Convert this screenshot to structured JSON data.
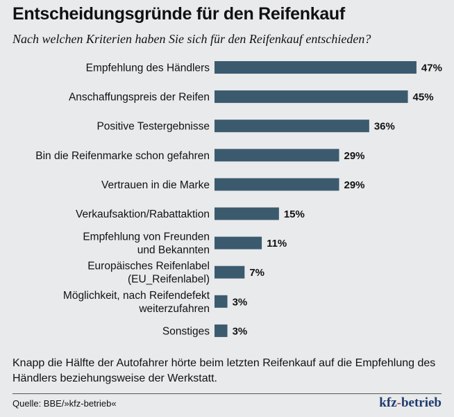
{
  "chart_data": {
    "type": "bar",
    "orientation": "horizontal",
    "title": "Entscheidungsgründe für den Reifenkauf",
    "subtitle": "Nach welchen Kriterien haben Sie sich für den Reifenkauf entschieden?",
    "categories": [
      [
        "Empfehlung des Händlers"
      ],
      [
        "Anschaffungspreis der Reifen"
      ],
      [
        "Positive Testergebnisse"
      ],
      [
        "Bin die Reifenmarke schon gefahren"
      ],
      [
        "Vertrauen in die Marke"
      ],
      [
        "Verkaufsaktion/Rabattaktion"
      ],
      [
        "Empfehlung von Freunden",
        "und Bekannten"
      ],
      [
        "Europäisches Reifenlabel",
        "(EU_Reifenlabel)"
      ],
      [
        "Möglichkeit, nach Reifendefekt",
        "weiterzufahren"
      ],
      [
        "Sonstiges"
      ]
    ],
    "values": [
      47,
      45,
      36,
      29,
      29,
      15,
      11,
      7,
      3,
      3
    ],
    "value_labels": [
      "47%",
      "45%",
      "36%",
      "29%",
      "29%",
      "15%",
      "11%",
      "7%",
      "3%",
      "3%"
    ],
    "unit": "%",
    "xlim": [
      0,
      50
    ],
    "grid": false,
    "bar_color": "#3b5a6e"
  },
  "note": "Knapp die Hälfte der Autofahrer hörte beim letzten Reifenkauf auf die Empfehlung des Händlers beziehungsweise der Werkstatt.",
  "source": "Quelle: BBE/»kfz-betrieb«",
  "logo": {
    "part1": "kfz",
    "dash": "-",
    "part2": "betrieb"
  }
}
